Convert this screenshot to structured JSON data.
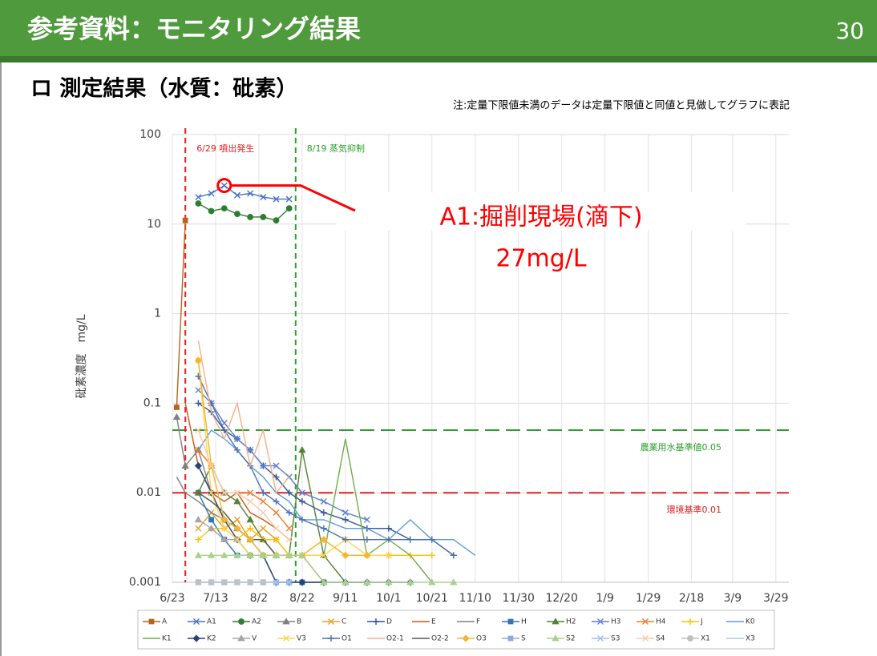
{
  "header": {
    "title": "参考資料：モニタリング結果",
    "page_number": "30"
  },
  "subtitle": "ロ 測定結果（水質：砒素）",
  "note": "注:定量下限値未満のデータは定量下限値と同値と見做してグラフに表記",
  "chart_data": {
    "type": "line",
    "y_label": "砒素濃度　mg/L",
    "log_scale": true,
    "grid": true,
    "ylim": [
      0.001,
      100
    ],
    "yticks": [
      0.001,
      0.01,
      0.1,
      1,
      10,
      100
    ],
    "xlim": [
      0,
      285
    ],
    "xticks": [
      {
        "value": 0,
        "label": "6/23"
      },
      {
        "value": 20,
        "label": "7/13"
      },
      {
        "value": 40,
        "label": "8/2"
      },
      {
        "value": 60,
        "label": "8/22"
      },
      {
        "value": 80,
        "label": "9/11"
      },
      {
        "value": 100,
        "label": "10/1"
      },
      {
        "value": 120,
        "label": "10/21"
      },
      {
        "value": 140,
        "label": "11/10"
      },
      {
        "value": 160,
        "label": "11/30"
      },
      {
        "value": 180,
        "label": "12/20"
      },
      {
        "value": 200,
        "label": "1/9"
      },
      {
        "value": 220,
        "label": "1/29"
      },
      {
        "value": 240,
        "label": "2/18"
      },
      {
        "value": 259,
        "label": "3/9"
      },
      {
        "value": 279,
        "label": "3/29"
      }
    ],
    "x": [
      2,
      6,
      12,
      18,
      24,
      30,
      36,
      42,
      48,
      54,
      60,
      70,
      80,
      90,
      100,
      110,
      120,
      130,
      140
    ],
    "series": [
      {
        "name": "A",
        "color": "#b5651d",
        "marker": "square",
        "values": [
          0.09,
          11,
          null,
          null,
          null,
          null,
          null,
          null,
          null,
          null,
          null,
          null,
          null,
          null,
          null,
          null,
          null,
          null,
          null
        ]
      },
      {
        "name": "A1",
        "color": "#4472c4",
        "marker": "x",
        "values": [
          null,
          null,
          20,
          22,
          27,
          21,
          22,
          20,
          19,
          19,
          null,
          null,
          null,
          null,
          null,
          null,
          null,
          null,
          null
        ]
      },
      {
        "name": "A2",
        "color": "#2e7d32",
        "marker": "circle",
        "values": [
          null,
          null,
          17,
          14,
          15,
          13,
          12,
          12,
          11,
          15,
          null,
          null,
          null,
          null,
          null,
          null,
          null,
          null,
          null
        ]
      },
      {
        "name": "B",
        "color": "#808080",
        "marker": "triangle",
        "values": [
          0.07,
          0.02,
          0.03,
          0.01,
          0.005,
          0.004,
          0.003,
          0.002,
          0.002,
          0.002,
          0.002,
          0.001,
          null,
          null,
          null,
          null,
          null,
          null,
          null
        ]
      },
      {
        "name": "C",
        "color": "#e6a020",
        "marker": "x",
        "values": [
          null,
          null,
          0.004,
          0.006,
          0.004,
          0.005,
          0.003,
          0.004,
          0.003,
          0.002,
          0.002,
          0.001,
          null,
          null,
          null,
          null,
          null,
          null,
          null
        ]
      },
      {
        "name": "D",
        "color": "#2f5597",
        "marker": "plus",
        "values": [
          null,
          null,
          0.1,
          0.08,
          0.05,
          0.04,
          0.03,
          0.02,
          0.015,
          0.01,
          0.008,
          0.006,
          0.005,
          0.004,
          0.004,
          0.003,
          0.003,
          0.002,
          null
        ]
      },
      {
        "name": "E",
        "color": "#c55a11",
        "marker": "none",
        "values": [
          null,
          0.1,
          0.02,
          0.01,
          0.008,
          0.01,
          0.006,
          0.005,
          0.004,
          0.003,
          null,
          null,
          null,
          null,
          null,
          null,
          null,
          null,
          null
        ]
      },
      {
        "name": "F",
        "color": "#7f7f7f",
        "marker": "none",
        "values": [
          0.015,
          0.01,
          0.008,
          0.006,
          0.005,
          0.004,
          0.003,
          0.003,
          0.002,
          0.002,
          null,
          null,
          null,
          null,
          null,
          null,
          null,
          null,
          null
        ]
      },
      {
        "name": "H",
        "color": "#2e75b6",
        "marker": "square",
        "values": [
          null,
          null,
          0.01,
          0.005,
          0.003,
          0.002,
          0.002,
          0.002,
          0.001,
          0.001,
          0.001,
          0.001,
          null,
          null,
          null,
          null,
          null,
          null,
          null
        ]
      },
      {
        "name": "H2",
        "color": "#548235",
        "marker": "triangle",
        "values": [
          null,
          null,
          0.01,
          0.02,
          0.01,
          0.008,
          0.005,
          0.003,
          0.002,
          0.002,
          0.03,
          0.002,
          0.001,
          0.001,
          null,
          null,
          null,
          null,
          null
        ]
      },
      {
        "name": "H3",
        "color": "#5b7fd4",
        "marker": "x",
        "values": [
          null,
          null,
          0.14,
          0.1,
          0.06,
          0.04,
          0.03,
          0.02,
          0.02,
          0.015,
          0.01,
          0.008,
          0.006,
          0.005,
          null,
          null,
          null,
          null,
          null
        ]
      },
      {
        "name": "H4",
        "color": "#ed7d31",
        "marker": "x",
        "values": [
          null,
          null,
          0.03,
          0.02,
          0.01,
          0.01,
          0.01,
          0.008,
          0.006,
          0.004,
          null,
          null,
          null,
          null,
          null,
          null,
          null,
          null,
          null
        ]
      },
      {
        "name": "J",
        "color": "#ffc000",
        "marker": "plus",
        "values": [
          null,
          null,
          0.003,
          0.004,
          0.004,
          0.003,
          0.004,
          0.003,
          0.003,
          0.002,
          0.002,
          0.003,
          0.002,
          0.002,
          0.002,
          0.002,
          0.002,
          null,
          null
        ]
      },
      {
        "name": "K0",
        "color": "#5b9bd5",
        "marker": "none",
        "values": [
          null,
          null,
          0.03,
          0.05,
          0.04,
          0.03,
          0.02,
          0.015,
          0.01,
          0.008,
          0.005,
          0.005,
          0.004,
          0.004,
          0.003,
          0.005,
          0.003,
          0.003,
          0.002
        ]
      },
      {
        "name": "K1",
        "color": "#70ad47",
        "marker": "none",
        "values": [
          null,
          null,
          0.01,
          0.008,
          0.006,
          0.004,
          0.003,
          0.003,
          0.002,
          0.002,
          0.002,
          0.002,
          0.04,
          0.002,
          0.003,
          0.002,
          0.001,
          null,
          null
        ]
      },
      {
        "name": "K2",
        "color": "#264478",
        "marker": "diamond",
        "values": [
          null,
          null,
          0.02,
          0.01,
          0.005,
          0.003,
          0.002,
          0.002,
          0.001,
          0.001,
          0.001,
          0.001,
          0.001,
          0.001,
          0.001,
          0.001,
          null,
          null,
          null
        ]
      },
      {
        "name": "V",
        "color": "#a5a5a5",
        "marker": "triangle",
        "values": [
          null,
          null,
          0.005,
          0.004,
          0.003,
          0.003,
          0.002,
          0.002,
          0.002,
          0.002,
          null,
          null,
          null,
          null,
          null,
          null,
          null,
          null,
          null
        ]
      },
      {
        "name": "V3",
        "color": "#ffd54f",
        "marker": "x",
        "values": [
          null,
          null,
          0.3,
          0.01,
          0.004,
          0.003,
          0.002,
          0.002,
          0.002,
          0.002,
          0.002,
          0.002,
          0.003,
          0.002,
          0.002,
          null,
          null,
          null,
          null
        ]
      },
      {
        "name": "O1",
        "color": "#4a6fb5",
        "marker": "plus",
        "values": [
          null,
          null,
          0.2,
          0.1,
          0.05,
          0.03,
          0.02,
          0.01,
          0.008,
          0.006,
          0.005,
          0.004,
          0.003,
          0.003,
          0.003,
          0.003,
          0.003,
          0.002,
          null
        ]
      },
      {
        "name": "O2-1",
        "color": "#f4b183",
        "marker": "none",
        "values": [
          null,
          null,
          0.5,
          0.08,
          0.04,
          0.1,
          0.02,
          0.05,
          0.01,
          0.015,
          null,
          null,
          null,
          null,
          null,
          null,
          null,
          null,
          null
        ]
      },
      {
        "name": "O2-2",
        "color": "#595959",
        "marker": "none",
        "values": [
          null,
          null,
          0.01,
          0.008,
          0.006,
          0.004,
          0.003,
          0.003,
          0.002,
          0.002,
          null,
          null,
          null,
          null,
          null,
          null,
          null,
          null,
          null
        ]
      },
      {
        "name": "O3",
        "color": "#f2b632",
        "marker": "diamond",
        "values": [
          null,
          null,
          0.3,
          0.02,
          0.005,
          0.004,
          0.003,
          0.002,
          0.002,
          0.002,
          0.002,
          0.003,
          0.002,
          0.002,
          null,
          null,
          null,
          null,
          null
        ]
      },
      {
        "name": "S",
        "color": "#8faadc",
        "marker": "square",
        "values": [
          null,
          null,
          0.001,
          0.001,
          0.001,
          0.001,
          0.001,
          0.001,
          0.001,
          0.001,
          null,
          null,
          null,
          null,
          null,
          null,
          null,
          null,
          null
        ]
      },
      {
        "name": "S2",
        "color": "#a9d18e",
        "marker": "triangle",
        "values": [
          null,
          null,
          0.002,
          0.002,
          0.002,
          0.002,
          0.002,
          0.002,
          0.002,
          0.002,
          0.002,
          0.001,
          0.001,
          0.001,
          0.001,
          0.001,
          0.001,
          0.001,
          null
        ]
      },
      {
        "name": "S3",
        "color": "#9dc3e6",
        "marker": "x",
        "values": [
          null,
          null,
          0.001,
          0.001,
          0.001,
          0.001,
          0.001,
          0.001,
          0.001,
          0.001,
          null,
          null,
          null,
          null,
          null,
          null,
          null,
          null,
          null
        ]
      },
      {
        "name": "S4",
        "color": "#f8cbad",
        "marker": "x",
        "values": [
          null,
          null,
          0.05,
          0.02,
          0.01,
          0.01,
          0.008,
          0.006,
          0.004,
          0.003,
          null,
          null,
          null,
          null,
          null,
          null,
          null,
          null,
          null
        ]
      },
      {
        "name": "X1",
        "color": "#bfbfbf",
        "marker": "circle",
        "values": [
          null,
          null,
          0.001,
          0.001,
          0.001,
          0.001,
          0.001,
          0.001,
          null,
          null,
          null,
          null,
          null,
          null,
          null,
          null,
          null,
          null,
          null
        ]
      },
      {
        "name": "X3",
        "color": "#b4c7e7",
        "marker": "none",
        "values": [
          null,
          null,
          0.001,
          0.001,
          0.001,
          0.001,
          0.001,
          0.001,
          0.001,
          null,
          null,
          null,
          null,
          null,
          null,
          null,
          null,
          null,
          null
        ]
      }
    ],
    "reference_lines": [
      {
        "value": 0.05,
        "label": "農業用水基準値0.05",
        "color": "#2ca02c"
      },
      {
        "value": 0.01,
        "label": "環境基準0.01",
        "color": "#e02020"
      }
    ],
    "event_lines": [
      {
        "value": 6,
        "label": "6/29 噴出発生",
        "color": "#e02020"
      },
      {
        "value": 57,
        "label": "8/19 蒸気抑制",
        "color": "#2ca02c"
      }
    ],
    "annotation": {
      "title": "A1:掘削現場(滴下)",
      "label": "27mg/L",
      "x": 24,
      "value": 27,
      "color": "#ff0000"
    }
  }
}
